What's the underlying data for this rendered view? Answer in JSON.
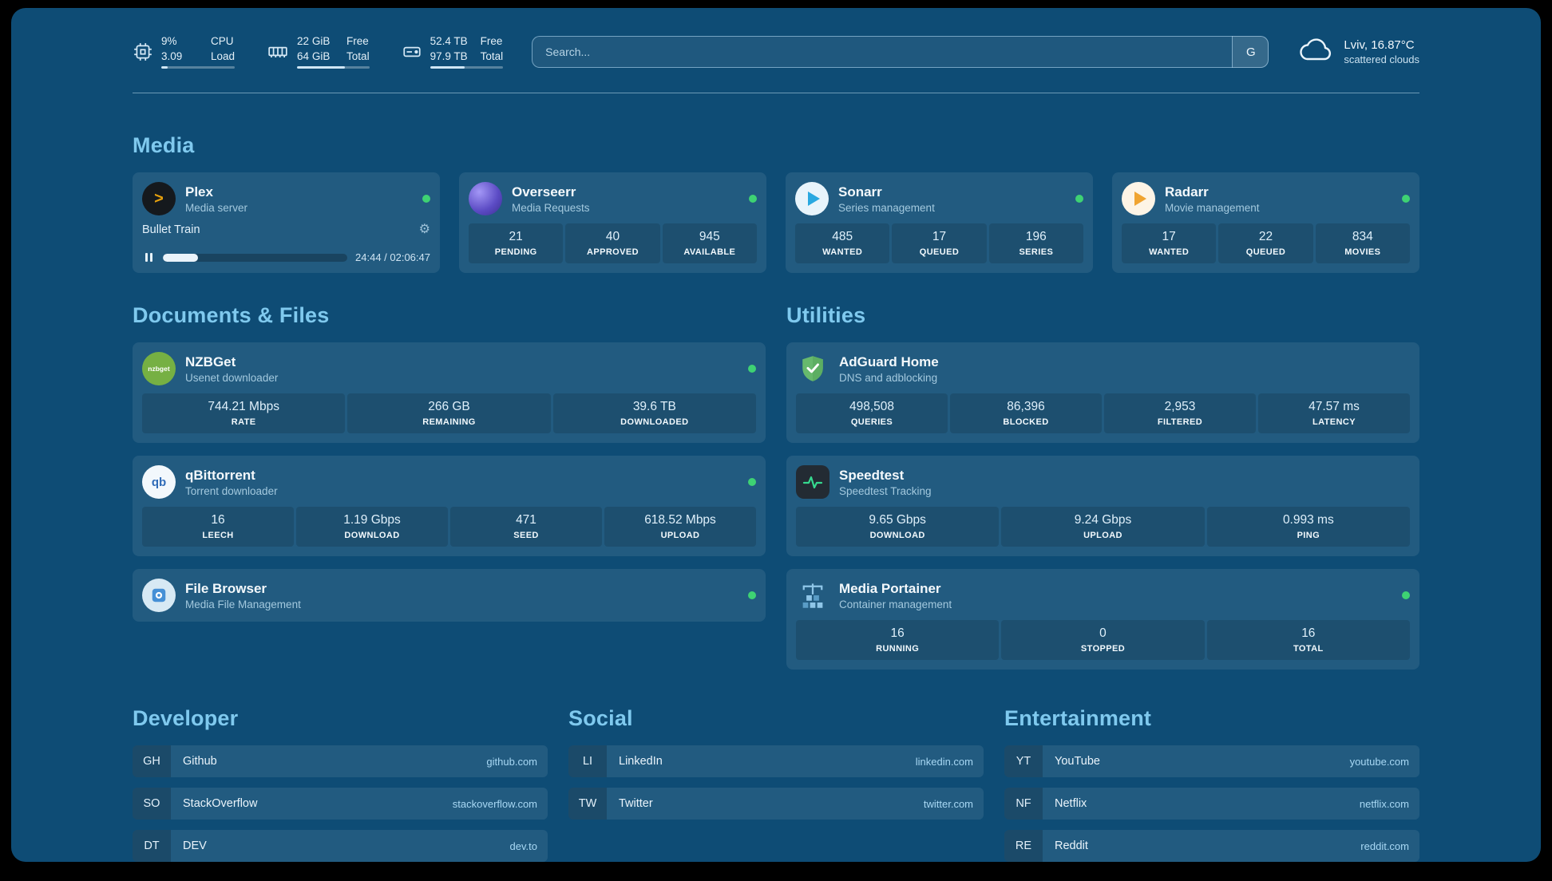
{
  "colors": {
    "accent": "#7fc9ee",
    "status_online": "#3ed273",
    "plex_orange": "#e5a00d"
  },
  "topbar": {
    "cpu": {
      "value1": "9%",
      "value2": "3.09",
      "label1": "CPU",
      "label2": "Load",
      "bar_percent": 9
    },
    "memory": {
      "value1": "22 GiB",
      "value2": "64 GiB",
      "label1": "Free",
      "label2": "Total",
      "bar_percent": 66
    },
    "disk": {
      "value1": "52.4 TB",
      "value2": "97.9 TB",
      "label1": "Free",
      "label2": "Total",
      "bar_percent": 47
    },
    "search": {
      "placeholder": "Search...",
      "provider_label": "G"
    },
    "weather": {
      "location": "Lviv, 16.87°C",
      "condition": "scattered clouds"
    }
  },
  "sections": {
    "media": {
      "heading": "Media",
      "plex": {
        "title": "Plex",
        "subtitle": "Media server",
        "icon_glyph": ">",
        "now_playing": "Bullet Train",
        "gear_glyph": "⚙",
        "time": "24:44 / 02:06:47",
        "progress_percent": 19
      },
      "overseerr": {
        "title": "Overseerr",
        "subtitle": "Media Requests",
        "stats": [
          {
            "value": "21",
            "label": "PENDING"
          },
          {
            "value": "40",
            "label": "APPROVED"
          },
          {
            "value": "945",
            "label": "AVAILABLE"
          }
        ]
      },
      "sonarr": {
        "title": "Sonarr",
        "subtitle": "Series management",
        "stats": [
          {
            "value": "485",
            "label": "WANTED"
          },
          {
            "value": "17",
            "label": "QUEUED"
          },
          {
            "value": "196",
            "label": "SERIES"
          }
        ]
      },
      "radarr": {
        "title": "Radarr",
        "subtitle": "Movie management",
        "stats": [
          {
            "value": "17",
            "label": "WANTED"
          },
          {
            "value": "22",
            "label": "QUEUED"
          },
          {
            "value": "834",
            "label": "MOVIES"
          }
        ]
      }
    },
    "documents": {
      "heading": "Documents & Files",
      "nzbget": {
        "title": "NZBGet",
        "subtitle": "Usenet downloader",
        "icon_text": "nzbget",
        "stats": [
          {
            "value": "744.21 Mbps",
            "label": "RATE"
          },
          {
            "value": "266 GB",
            "label": "REMAINING"
          },
          {
            "value": "39.6 TB",
            "label": "DOWNLOADED"
          }
        ]
      },
      "qbittorrent": {
        "title": "qBittorrent",
        "subtitle": "Torrent downloader",
        "icon_text": "qb",
        "stats": [
          {
            "value": "16",
            "label": "LEECH"
          },
          {
            "value": "1.19 Gbps",
            "label": "DOWNLOAD"
          },
          {
            "value": "471",
            "label": "SEED"
          },
          {
            "value": "618.52 Mbps",
            "label": "UPLOAD"
          }
        ]
      },
      "filebrowser": {
        "title": "File Browser",
        "subtitle": "Media File Management"
      }
    },
    "utilities": {
      "heading": "Utilities",
      "adguard": {
        "title": "AdGuard Home",
        "subtitle": "DNS and adblocking",
        "stats": [
          {
            "value": "498,508",
            "label": "QUERIES"
          },
          {
            "value": "86,396",
            "label": "BLOCKED"
          },
          {
            "value": "2,953",
            "label": "FILTERED"
          },
          {
            "value": "47.57 ms",
            "label": "LATENCY"
          }
        ]
      },
      "speedtest": {
        "title": "Speedtest",
        "subtitle": "Speedtest Tracking",
        "stats": [
          {
            "value": "9.65 Gbps",
            "label": "DOWNLOAD"
          },
          {
            "value": "9.24 Gbps",
            "label": "UPLOAD"
          },
          {
            "value": "0.993 ms",
            "label": "PING"
          }
        ]
      },
      "portainer": {
        "title": "Media Portainer",
        "subtitle": "Container management",
        "stats": [
          {
            "value": "16",
            "label": "RUNNING"
          },
          {
            "value": "0",
            "label": "STOPPED"
          },
          {
            "value": "16",
            "label": "TOTAL"
          }
        ]
      }
    },
    "bookmarks": {
      "developer": {
        "heading": "Developer",
        "items": [
          {
            "abbr": "GH",
            "name": "Github",
            "domain": "github.com"
          },
          {
            "abbr": "SO",
            "name": "StackOverflow",
            "domain": "stackoverflow.com"
          },
          {
            "abbr": "DT",
            "name": "DEV",
            "domain": "dev.to"
          }
        ]
      },
      "social": {
        "heading": "Social",
        "items": [
          {
            "abbr": "LI",
            "name": "LinkedIn",
            "domain": "linkedin.com"
          },
          {
            "abbr": "TW",
            "name": "Twitter",
            "domain": "twitter.com"
          }
        ]
      },
      "entertainment": {
        "heading": "Entertainment",
        "items": [
          {
            "abbr": "YT",
            "name": "YouTube",
            "domain": "youtube.com"
          },
          {
            "abbr": "NF",
            "name": "Netflix",
            "domain": "netflix.com"
          },
          {
            "abbr": "RE",
            "name": "Reddit",
            "domain": "reddit.com"
          }
        ]
      }
    }
  }
}
